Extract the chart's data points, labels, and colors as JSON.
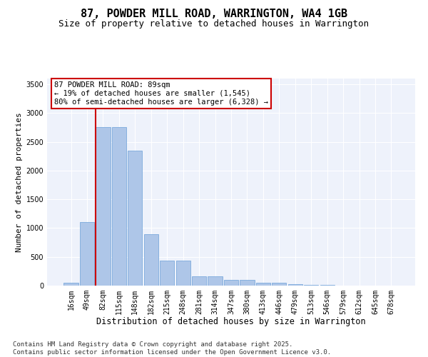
{
  "title": "87, POWDER MILL ROAD, WARRINGTON, WA4 1GB",
  "subtitle": "Size of property relative to detached houses in Warrington",
  "xlabel": "Distribution of detached houses by size in Warrington",
  "ylabel": "Number of detached properties",
  "categories": [
    "16sqm",
    "49sqm",
    "82sqm",
    "115sqm",
    "148sqm",
    "182sqm",
    "215sqm",
    "248sqm",
    "281sqm",
    "314sqm",
    "347sqm",
    "380sqm",
    "413sqm",
    "446sqm",
    "479sqm",
    "513sqm",
    "546sqm",
    "579sqm",
    "612sqm",
    "645sqm",
    "678sqm"
  ],
  "values": [
    50,
    1100,
    2750,
    2750,
    2350,
    900,
    430,
    430,
    165,
    165,
    95,
    95,
    55,
    55,
    28,
    10,
    10,
    4,
    4,
    2,
    2
  ],
  "bar_color": "#aec6e8",
  "bar_edge_color": "#6a9fd8",
  "bg_color": "#eef2fb",
  "grid_color": "#ffffff",
  "vline_color": "#cc0000",
  "vline_x_idx": 2,
  "annotation_text": "87 POWDER MILL ROAD: 89sqm\n← 19% of detached houses are smaller (1,545)\n80% of semi-detached houses are larger (6,328) →",
  "annotation_box_color": "#cc0000",
  "ylim": [
    0,
    3600
  ],
  "yticks": [
    0,
    500,
    1000,
    1500,
    2000,
    2500,
    3000,
    3500
  ],
  "footnote": "Contains HM Land Registry data © Crown copyright and database right 2025.\nContains public sector information licensed under the Open Government Licence v3.0.",
  "title_fontsize": 11,
  "subtitle_fontsize": 9,
  "xlabel_fontsize": 8.5,
  "ylabel_fontsize": 8,
  "tick_fontsize": 7,
  "annotation_fontsize": 7.5,
  "footnote_fontsize": 6.5
}
